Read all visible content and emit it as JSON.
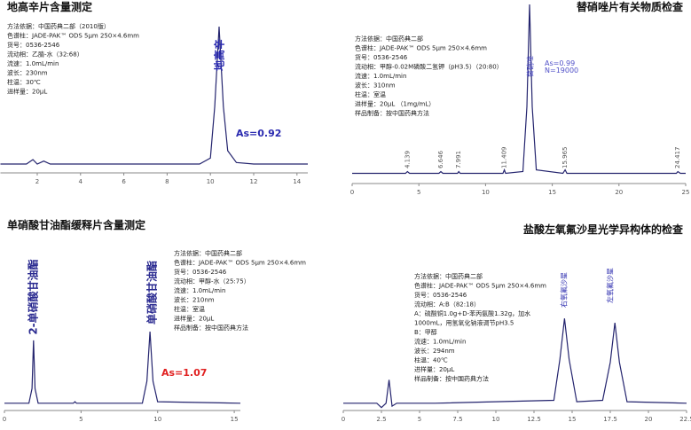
{
  "chart_data": [
    {
      "type": "line",
      "title": "地高辛片含量测定",
      "method": [
        "方法依据：中国药典二部（2010版）",
        "色谱柱：JADE-PAK™ ODS 5μm 250×4.6mm",
        "货号：0536-2546",
        "流动相：乙腈-水（32:68）",
        "流速：1.0mL/min",
        "波长：230nm",
        "柱温：30℃",
        "进样量：20μL"
      ],
      "annotations": [
        "地高辛",
        "As=0.92"
      ],
      "x": [
        0.3,
        1.5,
        1.8,
        2.0,
        2.3,
        2.6,
        3.0,
        4.0,
        6.0,
        8.0,
        9.5,
        10.0,
        10.2,
        10.4,
        10.6,
        10.8,
        11.2,
        12.0,
        14.5
      ],
      "values": [
        1,
        1,
        4,
        1,
        3,
        1,
        1,
        1,
        1,
        1,
        1,
        5,
        40,
        94,
        40,
        10,
        2,
        1,
        1
      ],
      "color": "#24246e",
      "xlim": [
        0.3,
        14.5
      ],
      "ylim": [
        -5,
        100
      ],
      "xticks": [
        2,
        4,
        6,
        8,
        10,
        12,
        14
      ]
    },
    {
      "type": "line",
      "title": "替硝唑片有关物质检查",
      "method": [
        "方法依据：中国药典二部",
        "色谱柱：JADE-PAK™ ODS 5μm 250×4.6mm",
        "货号：0536-2546",
        "流动相：甲醇-0.02M磷酸二氢钾（pH3.5）（20:80）",
        "流速：1.0mL/min",
        "波长：310nm",
        "柱温：室温",
        "进样量：20μL （1mg/mL）",
        "样品制备：按中国药典方法"
      ],
      "annotations": [
        "替硝唑",
        "As=0.99",
        "N=19000"
      ],
      "peak_labels": [
        4.139,
        6.646,
        7.991,
        11.409,
        15.965,
        24.417
      ],
      "x": [
        0,
        4.0,
        4.139,
        4.3,
        6.5,
        6.646,
        6.8,
        7.9,
        7.991,
        8.1,
        11.3,
        11.409,
        11.5,
        12.8,
        13.1,
        13.3,
        13.5,
        13.8,
        15.8,
        15.965,
        16.1,
        24.3,
        24.417,
        24.6,
        25
      ],
      "values": [
        1,
        1,
        2,
        1,
        1,
        2,
        1,
        1,
        2,
        1,
        1,
        3,
        1,
        2,
        40,
        100,
        40,
        3,
        1,
        3,
        1,
        1,
        2,
        1,
        1
      ],
      "color": "#24246e",
      "xlim": [
        0,
        25
      ],
      "ylim": [
        -5,
        100
      ],
      "xticks": [
        0,
        5,
        10,
        15,
        20,
        25
      ]
    },
    {
      "type": "line",
      "title": "单硝酸甘油酯缓释片含量测定",
      "method": [
        "方法依据：中国药典二部",
        "色谱柱：JADE-PAK™ ODS 5μm 250×4.6mm",
        "货号：0536-2546",
        "流动相：甲醇-水（25:75）",
        "流速：1.0mL/min",
        "波长：210nm",
        "柱温：室温",
        "进样量：20μL",
        "样品制备：按中国药典方法"
      ],
      "annotations": [
        "2-单硝酸甘油酯",
        "单硝酸甘油酯",
        "As=1.07"
      ],
      "x": [
        0,
        1.6,
        1.8,
        1.9,
        2.0,
        2.2,
        4.5,
        4.6,
        4.7,
        9.0,
        9.3,
        9.5,
        9.7,
        10.0,
        15.4
      ],
      "values": [
        0,
        0,
        10,
        43,
        10,
        0,
        0,
        1,
        0,
        0,
        15,
        49,
        15,
        1,
        0
      ],
      "color": "#24246e",
      "xlim": [
        0,
        15.4
      ],
      "ylim": [
        -5,
        100
      ],
      "xticks": [
        0,
        5,
        10,
        15
      ]
    },
    {
      "type": "line",
      "title": "盐酸左氧氟沙星光学异构体的检查",
      "method": [
        "方法依据：中国药典二部",
        "色谱柱：JADE-PAK™ ODS 5μm 250×4.6mm",
        "货号：0536-2546",
        "流动相：A:B（82:18）",
        "A：硫酸铜1.0g+D-苯丙氨酸1.32g，加水",
        "1000mL，用氢氧化钠液调节pH3.5",
        "B：甲醇",
        "流速：1.0mL/min",
        "波长：294nm",
        "柱温：40℃",
        "进样量：20μL",
        "样品制备：按中国药典方法"
      ],
      "annotations": [
        "右氧氟沙星",
        "左氧氟沙星"
      ],
      "x": [
        0,
        2.2,
        2.5,
        2.8,
        3.0,
        3.2,
        3.5,
        6.0,
        13.8,
        14.2,
        14.5,
        14.8,
        15.3,
        17.0,
        17.5,
        17.8,
        18.1,
        18.6,
        22.5
      ],
      "values": [
        0,
        0,
        -3,
        0,
        16,
        -2,
        0,
        0,
        2,
        30,
        58,
        30,
        1,
        2,
        28,
        55,
        28,
        1,
        0
      ],
      "color": "#24246e",
      "xlim": [
        0,
        22.5
      ],
      "ylim": [
        -5,
        100
      ],
      "xticks": [
        0,
        2.5,
        5,
        7.5,
        10,
        12.5,
        15,
        17.5,
        20,
        22.5
      ]
    }
  ]
}
